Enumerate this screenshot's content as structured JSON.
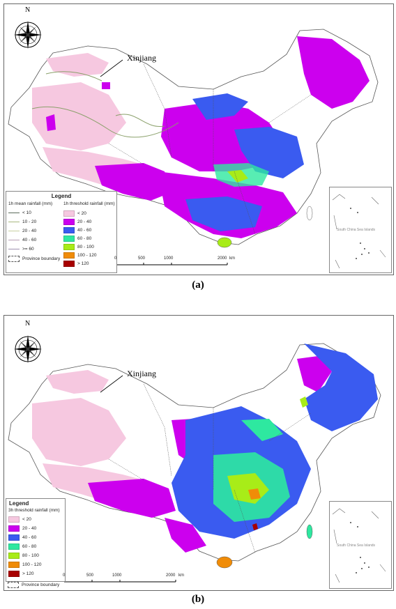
{
  "panel_a": {
    "label": "(a)",
    "region_label": "Xinjiang",
    "north_label": "N",
    "legend": {
      "title": "Legend",
      "mean_header": "1h mean rainfall  (mm)",
      "threshold_header": "1h threshold rainfall  (mm)",
      "mean_classes": [
        "< 10",
        "10 - 20",
        "20 - 40",
        "40 - 60",
        ">= 60"
      ],
      "mean_colors": [
        "#5b6b5b",
        "#a9b87e",
        "#c9cfa0",
        "#b8a0b5",
        "#9d8fb0"
      ],
      "boundary_label": "Province boundary",
      "threshold_classes": [
        "< 20",
        "20 - 40",
        "40 - 60",
        "60 - 80",
        "80 - 100",
        "100 - 120",
        "> 120"
      ]
    },
    "scale": {
      "ticks": [
        "0",
        "500",
        "1000",
        "2000"
      ],
      "unit": "km"
    },
    "inset_label": "South China Sea Islands"
  },
  "panel_b": {
    "label": "(b)",
    "region_label": "Xinjiang",
    "north_label": "N",
    "legend": {
      "title": "Legend",
      "threshold_header": "3h threshold rainfall  (mm)",
      "threshold_classes": [
        "< 20",
        "20 - 40",
        "40 - 60",
        "60 - 80",
        "80 - 100",
        "100 - 120",
        "> 120"
      ],
      "boundary_label": "Province boundary"
    },
    "scale": {
      "ticks": [
        "0",
        "500",
        "1000",
        "2000"
      ],
      "unit": "km"
    },
    "inset_label": "South China Sea Islands"
  },
  "colors": {
    "lt20": "#f6c8e0",
    "c20_40": "#cc00ee",
    "c40_60": "#3a5bf0",
    "c60_80": "#2ee8a0",
    "c80_100": "#a8ec18",
    "c100_120": "#f08c08",
    "gt120": "#a80000",
    "boundary": "#555555",
    "land": "#ffffff"
  }
}
